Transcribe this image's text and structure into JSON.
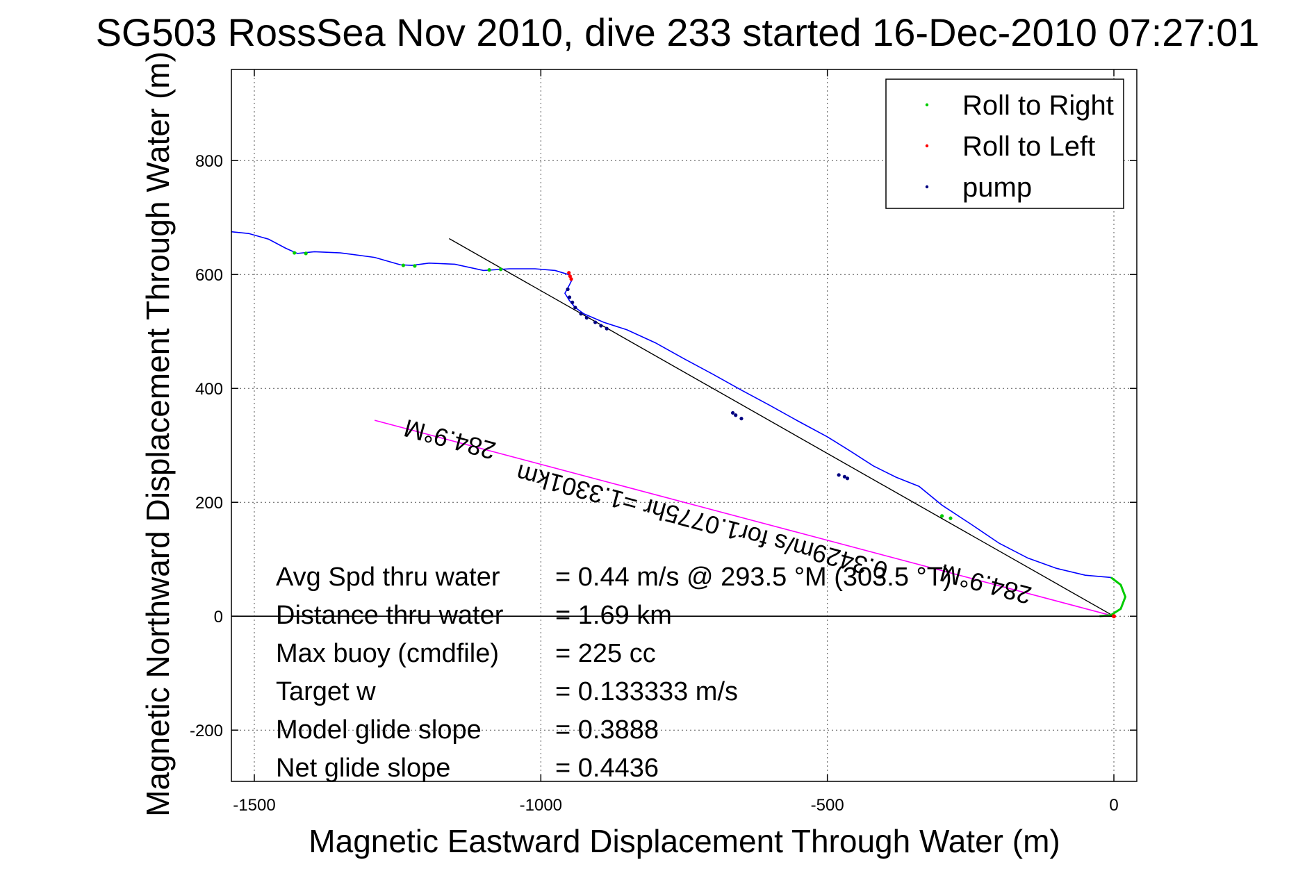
{
  "chart_data": {
    "type": "line",
    "title": "SG503 RossSea Nov 2010, dive 233 started 16-Dec-2010 07:27:01",
    "xlabel": "Magnetic Eastward Displacement Through Water (m)",
    "ylabel": "Magnetic Northward Displacement Through Water (m)",
    "xlim": [
      -1540,
      40
    ],
    "ylim": [
      -290,
      960
    ],
    "x_ticks": [
      -1500,
      -1000,
      -500,
      0
    ],
    "y_ticks": [
      -200,
      0,
      200,
      400,
      600,
      800
    ],
    "x_tick_labels": [
      "-1500",
      "-1000",
      "-500",
      "0"
    ],
    "y_tick_labels": [
      "-200",
      "0",
      "200",
      "400",
      "600",
      "800"
    ],
    "grid": true,
    "legend_position": "top-right",
    "legend": [
      {
        "label": "Roll to Right",
        "color": "#00cc00"
      },
      {
        "label": "Roll to Left",
        "color": "#ff0000"
      },
      {
        "label": "pump",
        "color": "#000080"
      }
    ],
    "colors": {
      "track": "#0000ff",
      "roll_right": "#00cc00",
      "roll_left": "#ff0000",
      "pump": "#000080",
      "fit_line": "#000000",
      "heading_line": "#ff00ff",
      "grid": "#555555"
    },
    "series": [
      {
        "id": "track",
        "color": "#0000ff",
        "x": [
          -1540,
          -1510,
          -1475,
          -1445,
          -1425,
          -1395,
          -1350,
          -1290,
          -1245,
          -1225,
          -1195,
          -1150,
          -1100,
          -1055,
          -1010,
          -975,
          -952,
          -945,
          -950,
          -958,
          -950,
          -940,
          -925,
          -890,
          -850,
          -800,
          -750,
          -700,
          -650,
          -600,
          -550,
          -500,
          -460,
          -420,
          -380,
          -340,
          -300,
          -250,
          -200,
          -150,
          -100,
          -50,
          -5
        ],
        "y": [
          675,
          672,
          662,
          646,
          637,
          640,
          638,
          630,
          617,
          616,
          620,
          618,
          607,
          610,
          610,
          607,
          600,
          592,
          582,
          567,
          554,
          542,
          531,
          516,
          503,
          480,
          452,
          425,
          397,
          370,
          342,
          315,
          290,
          264,
          244,
          228,
          195,
          162,
          128,
          102,
          84,
          72,
          68
        ]
      },
      {
        "id": "return-loop",
        "color": "#00cc00",
        "x": [
          -5,
          12,
          20,
          12,
          -5,
          -25
        ],
        "y": [
          68,
          55,
          34,
          13,
          2,
          0
        ]
      },
      {
        "id": "surface-to-origin",
        "color": "#000000",
        "x": [
          -1540,
          -25,
          0
        ],
        "y": [
          0,
          0,
          0
        ]
      }
    ],
    "roll_right_points": {
      "x": [
        -1430,
        -1410,
        -1240,
        -1220,
        -1090,
        -1070,
        -300,
        -285
      ],
      "y": [
        638,
        637,
        616,
        615,
        608,
        609,
        176,
        172
      ]
    },
    "roll_left_points": {
      "x": [
        -951,
        -949,
        -947
      ],
      "y": [
        603,
        597,
        592
      ]
    },
    "pump_points": {
      "x": [
        -953,
        -950,
        -945,
        -940,
        -930,
        -920,
        -905,
        -895,
        -885,
        -665,
        -660,
        -650,
        -480,
        -470,
        -465
      ],
      "y": [
        574,
        560,
        551,
        542,
        531,
        524,
        516,
        510,
        505,
        357,
        353,
        347,
        248,
        245,
        242
      ]
    },
    "fit_line": {
      "x": [
        -1160,
        0
      ],
      "y": [
        663,
        0
      ]
    },
    "heading_line": {
      "x": [
        -1290,
        0
      ],
      "y": [
        344,
        0
      ]
    },
    "annotations": [
      {
        "text": "284.9°M",
        "x": -1155,
        "y": 325,
        "rotate": 195
      },
      {
        "text": "0.3429m/s for1.0775hr =1.3301km",
        "x": -715,
        "y": 180,
        "rotate": 195
      },
      {
        "text": "284.9°M",
        "x": -220,
        "y": 71,
        "rotate": 195
      }
    ],
    "stats": [
      {
        "label": "Avg Spd thru water",
        "value": "=  0.44 m/s @ 293.5 °M (303.5 °T)"
      },
      {
        "label": "Distance thru water",
        "value": "=  1.69 km"
      },
      {
        "label": "Max buoy (cmdfile)",
        "value": "= 225 cc"
      },
      {
        "label": "Target w",
        "value": "= 0.133333 m/s"
      },
      {
        "label": "Model glide slope",
        "value": "= 0.3888"
      },
      {
        "label": "Net glide slope",
        "value": "= 0.4436"
      }
    ]
  }
}
